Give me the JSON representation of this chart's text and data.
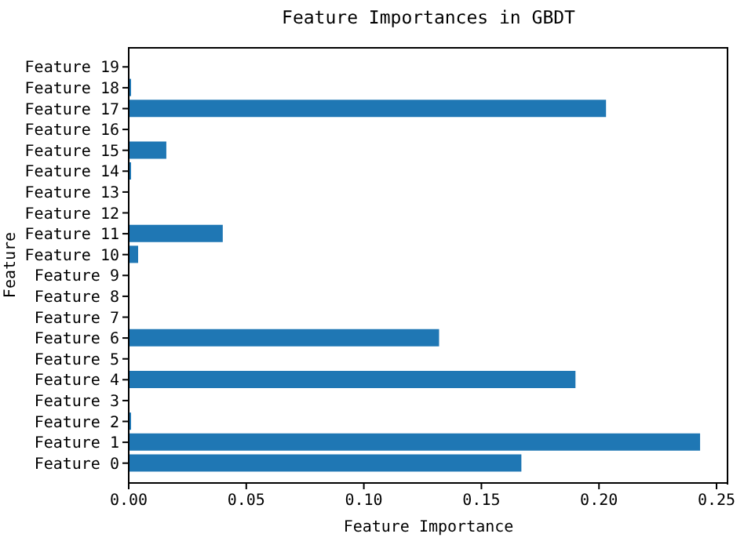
{
  "chart_data": {
    "type": "bar",
    "orientation": "horizontal",
    "title": "Feature Importances in GBDT",
    "xlabel": "Feature Importance",
    "ylabel": "Feature",
    "categories": [
      "Feature 19",
      "Feature 18",
      "Feature 17",
      "Feature 16",
      "Feature 15",
      "Feature 14",
      "Feature 13",
      "Feature 12",
      "Feature 11",
      "Feature 10",
      "Feature 9",
      "Feature 8",
      "Feature 7",
      "Feature 6",
      "Feature 5",
      "Feature 4",
      "Feature 3",
      "Feature 2",
      "Feature 1",
      "Feature 0"
    ],
    "values": [
      0,
      0.001,
      0.203,
      0,
      0.016,
      0.001,
      0,
      0,
      0.04,
      0.004,
      0,
      0,
      0,
      0.132,
      0,
      0.19,
      0,
      0.001,
      0.243,
      0.167
    ],
    "color": "#1f77b4",
    "xlim": [
      0,
      0.255
    ],
    "xticks": [
      {
        "value": 0,
        "label": "0.00"
      },
      0.05,
      {
        "value": 0.1,
        "label": "0.10"
      },
      0.15,
      {
        "value": 0.2,
        "label": "0.20"
      },
      0.25
    ],
    "grid": false
  }
}
